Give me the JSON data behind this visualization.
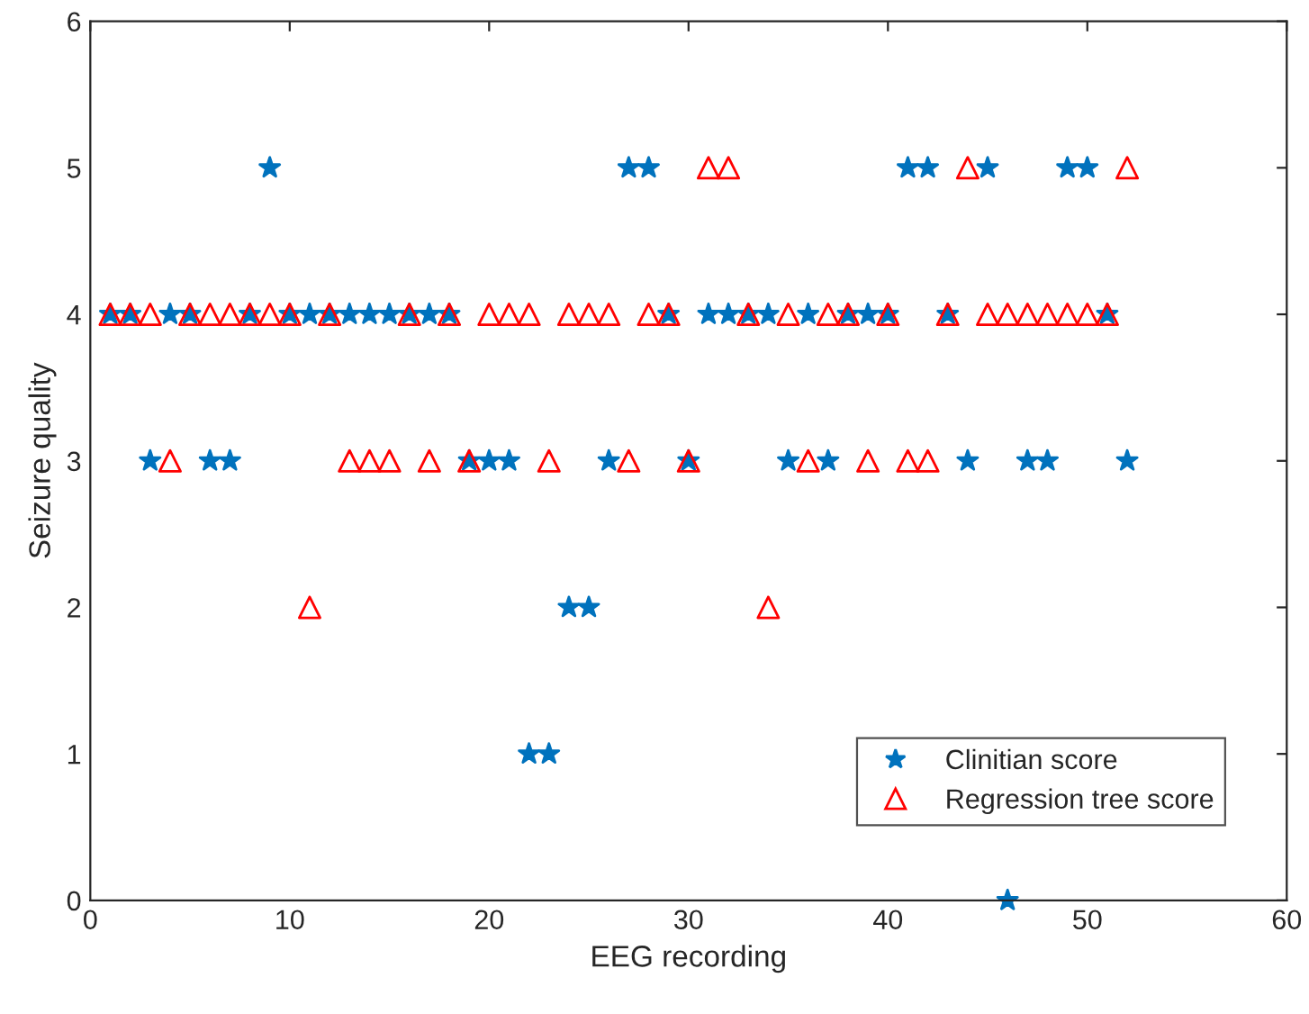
{
  "chart_data": {
    "type": "scatter",
    "xlabel": "EEG recording",
    "ylabel": "Seizure quality",
    "x": [
      1,
      2,
      3,
      4,
      5,
      6,
      7,
      8,
      9,
      10,
      11,
      12,
      13,
      14,
      15,
      16,
      17,
      18,
      19,
      20,
      21,
      22,
      23,
      24,
      25,
      26,
      27,
      28,
      29,
      30,
      31,
      32,
      33,
      34,
      35,
      36,
      37,
      38,
      39,
      40,
      41,
      42,
      43,
      44,
      45,
      46,
      47,
      48,
      49,
      50,
      51,
      52
    ],
    "series": [
      {
        "name": "Clinitian score",
        "color": "#0072bd",
        "marker": "star",
        "values": [
          4,
          4,
          3,
          4,
          4,
          3,
          3,
          4,
          5,
          4,
          4,
          4,
          4,
          4,
          4,
          4,
          4,
          4,
          3,
          3,
          3,
          1,
          1,
          2,
          2,
          3,
          5,
          5,
          4,
          3,
          4,
          4,
          4,
          4,
          3,
          4,
          3,
          4,
          4,
          4,
          5,
          5,
          4,
          3,
          5,
          0,
          3,
          3,
          5,
          5,
          4,
          3
        ]
      },
      {
        "name": "Regression tree score",
        "color": "#ff0000",
        "marker": "triangle",
        "values": [
          4,
          4,
          4,
          3,
          4,
          4,
          4,
          4,
          4,
          4,
          2,
          4,
          3,
          3,
          3,
          4,
          3,
          4,
          3,
          4,
          4,
          4,
          3,
          4,
          4,
          4,
          3,
          4,
          4,
          3,
          5,
          5,
          4,
          2,
          4,
          3,
          4,
          4,
          3,
          4,
          3,
          3,
          4,
          5,
          4,
          4,
          4,
          4,
          4,
          4,
          4,
          5
        ]
      }
    ],
    "xlim": [
      0,
      60
    ],
    "xticks": [
      0,
      10,
      20,
      30,
      40,
      50,
      60
    ],
    "ylim": [
      0,
      6
    ],
    "yticks": [
      0,
      1,
      2,
      3,
      4,
      5,
      6
    ],
    "grid": false,
    "legend": "bottom right"
  }
}
